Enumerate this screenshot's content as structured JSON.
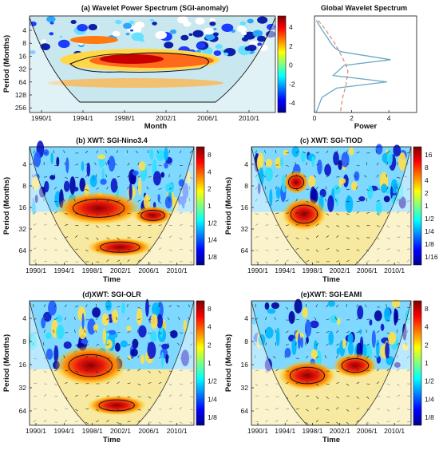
{
  "panels": {
    "a": {
      "title": "(a) Wavelet Power Spectrum (SGI-anomaly)",
      "ylabel": "Period (Months)",
      "xlabel": "Month",
      "yticks": [
        "4",
        "8",
        "16",
        "32",
        "64",
        "128",
        "256"
      ],
      "xticks": [
        "1990/1",
        "1994/1",
        "1998/1",
        "2002/1",
        "2006/1",
        "2010/1"
      ],
      "colorbar": [
        "4",
        "2",
        "0",
        "-2",
        "-4"
      ]
    },
    "global": {
      "title": "Global Wavelet Spectrum",
      "xlabel": "Power",
      "xticks": [
        "0",
        "2",
        "4"
      ]
    },
    "b": {
      "title": "(b) XWT: SGI-Nino3.4",
      "ylabel": "Period (Months)",
      "xlabel": "Time",
      "yticks": [
        "4",
        "8",
        "16",
        "32",
        "64"
      ],
      "xticks": [
        "1990/1",
        "1994/1",
        "1998/1",
        "2002/1",
        "2006/1",
        "2010/1"
      ],
      "colorbar": [
        "8",
        "4",
        "2",
        "1",
        "1/2",
        "1/4",
        "1/8"
      ]
    },
    "c": {
      "title": "(c) XWT: SGI-TIOD",
      "ylabel": "Period (Months)",
      "xlabel": "Time",
      "yticks": [
        "4",
        "8",
        "16",
        "32",
        "64"
      ],
      "xticks": [
        "1990/1",
        "1994/1",
        "1998/1",
        "2002/1",
        "2006/1",
        "2010/1"
      ],
      "colorbar": [
        "16",
        "8",
        "4",
        "2",
        "1",
        "1/2",
        "1/4",
        "1/8",
        "1/16"
      ]
    },
    "d": {
      "title": "(d)XWT: SGI-OLR",
      "ylabel": "Period (Months)",
      "xlabel": "Time",
      "yticks": [
        "4",
        "8",
        "16",
        "32",
        "64"
      ],
      "xticks": [
        "1990/1",
        "1994/1",
        "1998/1",
        "2002/1",
        "2006/1",
        "2010/1"
      ],
      "colorbar": [
        "8",
        "4",
        "2",
        "1",
        "1/2",
        "1/4",
        "1/8"
      ]
    },
    "e": {
      "title": "(e)XWT: SGI-EAMI",
      "ylabel": "Period (Months)",
      "xlabel": "Time",
      "yticks": [
        "4",
        "8",
        "16",
        "32",
        "64"
      ],
      "xticks": [
        "1990/1",
        "1994/1",
        "1998/1",
        "2002/1",
        "2006/1",
        "2010/1"
      ],
      "colorbar": [
        "8",
        "4",
        "2",
        "1",
        "1/2",
        "1/4",
        "1/8"
      ]
    }
  },
  "chart_data": [
    {
      "type": "heatmap",
      "title": "(a) Wavelet Power Spectrum (SGI-anomaly)",
      "xlabel": "Month",
      "ylabel": "Period (Months)",
      "x_range": [
        "1988/1",
        "2014/1"
      ],
      "y_scale": "log2",
      "y_range": [
        2,
        256
      ],
      "colorbar_range": [
        -4,
        4
      ],
      "colormap": "jet",
      "regions": [
        {
          "period_range": [
            14,
            24
          ],
          "time_range": [
            "1994/1",
            "2007/1"
          ],
          "value": 3
        },
        {
          "period_range": [
            8,
            12
          ],
          "time_range": [
            "1994/1",
            "1999/1"
          ],
          "value": 2
        },
        {
          "period_range": [
            40,
            70
          ],
          "time_range": [
            "1993/1",
            "2009/1"
          ],
          "value": 1
        }
      ]
    },
    {
      "type": "line",
      "title": "Global Wavelet Spectrum",
      "xlabel": "Power",
      "xlim": [
        0,
        5.5
      ],
      "y_scale": "log2",
      "series": [
        {
          "x": [
            0.1,
            0.4,
            0.7,
            0.9,
            1.1,
            1.4,
            4.1,
            1.6,
            1.0,
            3.9,
            1.2,
            0.4,
            0.1
          ],
          "y": [
            2.5,
            4,
            6,
            8,
            10,
            12,
            18,
            24,
            40,
            55,
            75,
            120,
            250
          ]
        },
        {
          "x": [
            0.2,
            0.6,
            1.1,
            1.5,
            1.7,
            1.8,
            1.7,
            1.5,
            1.4
          ],
          "y": [
            2.5,
            4,
            8,
            16,
            24,
            32,
            64,
            128,
            250
          ]
        }
      ]
    },
    {
      "type": "heatmap",
      "title": "(b) XWT: SGI-Nino3.4",
      "xlabel": "Time",
      "ylabel": "Period (Months)",
      "y_scale": "log2",
      "colorbar_range": [
        "1/8",
        "8"
      ],
      "regions": [
        {
          "period_range": [
            16,
            40
          ],
          "time_range": [
            "1994/1",
            "2008/1"
          ],
          "value": 8
        },
        {
          "period_range": [
            45,
            70
          ],
          "time_range": [
            "1996/1",
            "2003/1"
          ],
          "value": 6
        }
      ]
    },
    {
      "type": "heatmap",
      "title": "(c) XWT: SGI-TIOD",
      "xlabel": "Time",
      "ylabel": "Period (Months)",
      "y_scale": "log2",
      "colorbar_range": [
        "1/16",
        "16"
      ],
      "regions": [
        {
          "period_range": [
            14,
            30
          ],
          "time_range": [
            "1995/1",
            "2001/1"
          ],
          "value": 16
        }
      ]
    },
    {
      "type": "heatmap",
      "title": "(d)XWT: SGI-OLR",
      "xlabel": "Time",
      "ylabel": "Period (Months)",
      "y_scale": "log2",
      "colorbar_range": [
        "1/8",
        "8"
      ],
      "regions": [
        {
          "period_range": [
            14,
            40
          ],
          "time_range": [
            "1994/1",
            "2005/1"
          ],
          "value": 8
        },
        {
          "period_range": [
            45,
            70
          ],
          "time_range": [
            "1997/1",
            "2004/1"
          ],
          "value": 6
        }
      ]
    },
    {
      "type": "heatmap",
      "title": "(e)XWT: SGI-EAMI",
      "xlabel": "Time",
      "ylabel": "Period (Months)",
      "y_scale": "log2",
      "colorbar_range": [
        "1/8",
        "8"
      ],
      "regions": [
        {
          "period_range": [
            16,
            34
          ],
          "time_range": [
            "1993/1",
            "2007/1"
          ],
          "value": 8
        }
      ]
    }
  ]
}
